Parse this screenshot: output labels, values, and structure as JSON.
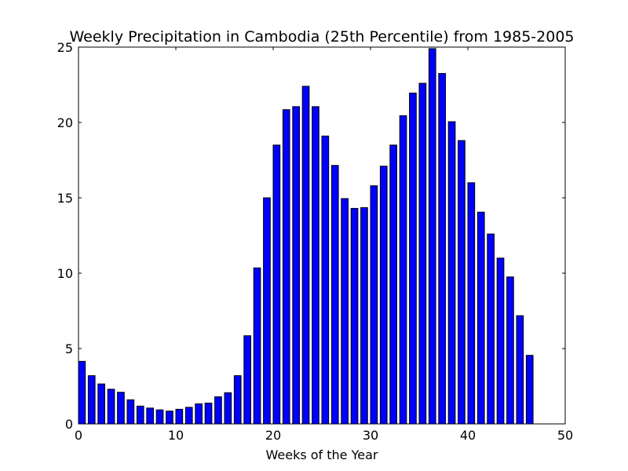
{
  "chart_data": {
    "type": "bar",
    "title": "Weekly Precipitation in Cambodia (25th Percentile) from 1985-2005",
    "xlabel": "Weeks of the Year",
    "ylabel": "",
    "xlim": [
      0,
      50
    ],
    "ylim": [
      0,
      25
    ],
    "xticks": [
      0,
      10,
      20,
      30,
      40,
      50
    ],
    "yticks": [
      0,
      5,
      10,
      15,
      20,
      25
    ],
    "bar_color": "#0000ff",
    "edge_color": "#000000",
    "grid": false,
    "x": [
      0,
      1,
      2,
      3,
      4,
      5,
      6,
      7,
      8,
      9,
      10,
      11,
      12,
      13,
      14,
      15,
      16,
      17,
      18,
      19,
      20,
      21,
      22,
      23,
      24,
      25,
      26,
      27,
      28,
      29,
      30,
      31,
      32,
      33,
      34,
      35,
      36,
      37,
      38,
      39,
      40,
      41,
      42,
      43,
      44,
      45,
      46
    ],
    "values": [
      4.15,
      3.2,
      2.65,
      2.3,
      2.1,
      1.6,
      1.18,
      1.05,
      0.93,
      0.85,
      0.97,
      1.1,
      1.33,
      1.38,
      1.8,
      2.07,
      3.2,
      5.85,
      10.35,
      15.0,
      18.5,
      20.85,
      21.05,
      22.4,
      21.05,
      19.1,
      17.15,
      14.95,
      14.3,
      14.35,
      15.8,
      17.1,
      18.5,
      20.45,
      21.95,
      22.6,
      24.9,
      23.25,
      20.05,
      18.8,
      16.0,
      14.05,
      12.6,
      11.0,
      9.75,
      7.18,
      4.55
    ]
  }
}
